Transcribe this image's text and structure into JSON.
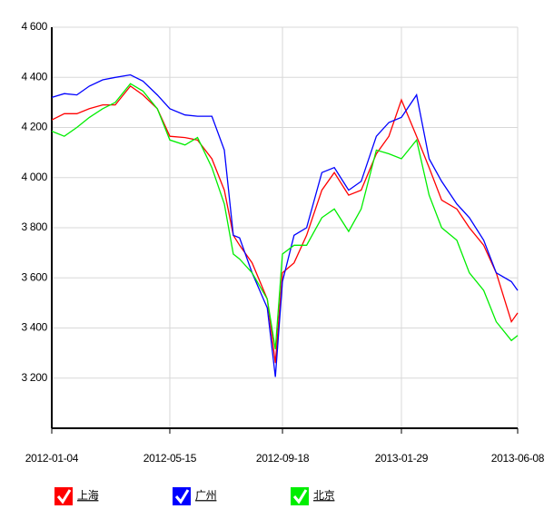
{
  "chart_data": {
    "type": "line",
    "x": [
      "2012-01-04",
      "2012-01-18",
      "2012-02-01",
      "2012-02-15",
      "2012-03-01",
      "2012-03-15",
      "2012-04-01",
      "2012-04-15",
      "2012-05-01",
      "2012-05-15",
      "2012-06-01",
      "2012-06-15",
      "2012-07-01",
      "2012-07-15",
      "2012-07-25",
      "2012-08-01",
      "2012-08-15",
      "2012-09-01",
      "2012-09-10",
      "2012-09-18",
      "2012-10-01",
      "2012-10-15",
      "2012-11-01",
      "2012-11-15",
      "2012-12-01",
      "2012-12-15",
      "2013-01-01",
      "2013-01-15",
      "2013-01-29",
      "2013-02-15",
      "2013-03-01",
      "2013-03-15",
      "2013-04-01",
      "2013-04-15",
      "2013-05-01",
      "2013-05-15",
      "2013-06-01",
      "2013-06-08"
    ],
    "series": [
      {
        "name": "上海",
        "color": "#ff0000",
        "values": [
          4230,
          4255,
          4255,
          4275,
          4290,
          4290,
          4365,
          4330,
          4275,
          4165,
          4160,
          4150,
          4075,
          3950,
          3770,
          3730,
          3660,
          3515,
          3260,
          3620,
          3660,
          3770,
          3950,
          4020,
          3930,
          3950,
          4095,
          4165,
          4310,
          4165,
          4040,
          3910,
          3875,
          3800,
          3730,
          3620,
          3425,
          3460
        ]
      },
      {
        "name": "广州",
        "color": "#0000ff",
        "values": [
          4320,
          4335,
          4330,
          4365,
          4390,
          4400,
          4410,
          4385,
          4330,
          4275,
          4250,
          4245,
          4245,
          4110,
          3770,
          3760,
          3620,
          3480,
          3205,
          3585,
          3770,
          3800,
          4020,
          4040,
          3950,
          3985,
          4165,
          4220,
          4240,
          4330,
          4075,
          3985,
          3895,
          3840,
          3750,
          3620,
          3585,
          3550
        ]
      },
      {
        "name": "北京",
        "color": "#00ee00",
        "values": [
          4185,
          4165,
          4200,
          4240,
          4275,
          4300,
          4375,
          4345,
          4275,
          4150,
          4130,
          4160,
          4040,
          3895,
          3695,
          3675,
          3620,
          3515,
          3315,
          3695,
          3730,
          3730,
          3840,
          3875,
          3785,
          3875,
          4110,
          4095,
          4075,
          4150,
          3930,
          3800,
          3750,
          3620,
          3550,
          3425,
          3350,
          3370
        ]
      }
    ],
    "xlim": [
      "2012-01-04",
      "2013-06-08"
    ],
    "xticks": [
      "2012-01-04",
      "2012-05-15",
      "2012-09-18",
      "2013-01-29",
      "2013-06-08"
    ],
    "ylim": [
      3000,
      4600
    ],
    "yticks": [
      {
        "value": 3200,
        "label": "3 200"
      },
      {
        "value": 3400,
        "label": "3 400"
      },
      {
        "value": 3600,
        "label": "3 600"
      },
      {
        "value": 3800,
        "label": "3 800"
      },
      {
        "value": 4000,
        "label": "4 000"
      },
      {
        "value": 4200,
        "label": "4 200"
      },
      {
        "value": 4400,
        "label": "4 400"
      },
      {
        "value": 4600,
        "label": "4 600"
      }
    ],
    "grid": true
  }
}
